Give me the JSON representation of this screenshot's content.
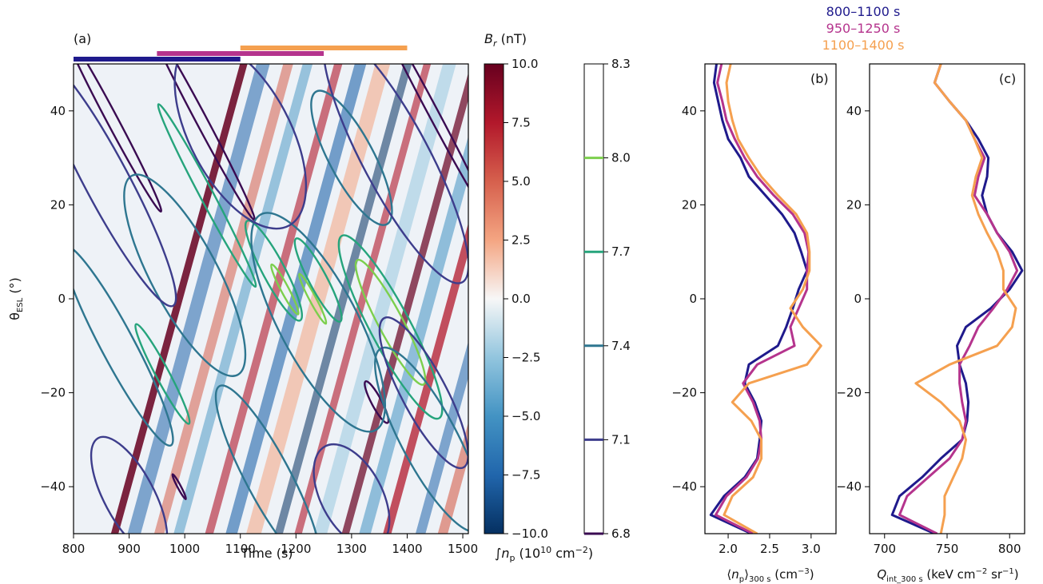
{
  "chart_data": [
    {
      "panel": "(a)",
      "type": "heatmap",
      "xlabel": "Time (s)",
      "ylabel": "θ_ESL (°)",
      "xlim": [
        800,
        1510
      ],
      "ylim": [
        -50,
        50
      ],
      "x_ticks": [
        "800",
        "900",
        "1000",
        "1100",
        "1200",
        "1300",
        "1400",
        "1500"
      ],
      "y_ticks": [
        "−40",
        "−20",
        "0",
        "20",
        "40"
      ],
      "x_tick_values": [
        800,
        900,
        1000,
        1100,
        1200,
        1300,
        1400,
        1500
      ],
      "y_tick_values": [
        -40,
        -20,
        0,
        20,
        40
      ],
      "time_windows": [
        {
          "label": "800–1100 s",
          "start": 800,
          "end": 1100,
          "color": "#1f1a8c"
        },
        {
          "label": "950–1250 s",
          "start": 950,
          "end": 1250,
          "color": "#b5348d"
        },
        {
          "label": "1100–1400 s",
          "start": 1100,
          "end": 1400,
          "color": "#f5a04f"
        }
      ],
      "colorbar_fill": {
        "label": "B_r (nT)",
        "range": [
          -10,
          10
        ],
        "ticks": [
          "10.0",
          "7.5",
          "5.0",
          "2.5",
          "0.0",
          "−2.5",
          "−5.0",
          "−7.5",
          "−10.0"
        ],
        "tick_values": [
          10,
          7.5,
          5,
          2.5,
          0,
          -2.5,
          -5,
          -7.5,
          -10
        ]
      },
      "colorbar_contours": {
        "label": "∫n_p (10^10 cm^−2)",
        "range": [
          6.8,
          8.3
        ],
        "ticks": [
          "8.3",
          "8.0",
          "7.7",
          "7.4",
          "7.1",
          "6.8"
        ],
        "levels": [
          {
            "value": 8.0,
            "color": "#7ccf4d"
          },
          {
            "value": 7.7,
            "color": "#26a47c"
          },
          {
            "value": 7.4,
            "color": "#2e7690"
          },
          {
            "value": 7.1,
            "color": "#3d3d8c"
          },
          {
            "value": 6.8,
            "color": "#3a0b52"
          }
        ]
      }
    },
    {
      "panel": "(b)",
      "type": "line",
      "xlabel": "⟨n_p⟩_300 s (cm^−3)",
      "xlim": [
        1.72,
        3.3
      ],
      "ylim": [
        -50,
        50
      ],
      "x_ticks": [
        "2.0",
        "2.5",
        "3.0"
      ],
      "x_tick_values": [
        2.0,
        2.5,
        3.0
      ],
      "y_ticks": [
        "−40",
        "−20",
        "0",
        "20",
        "40"
      ],
      "y_tick_values": [
        -40,
        -20,
        0,
        20,
        40
      ],
      "y": [
        -50,
        -46,
        -42,
        -38,
        -34,
        -30,
        -26,
        -22,
        -18,
        -14,
        -10,
        -6,
        -2,
        2,
        6,
        10,
        14,
        18,
        22,
        26,
        30,
        34,
        38,
        42,
        46,
        50
      ],
      "series": [
        {
          "name": "800–1100 s",
          "color": "#1f1a8c",
          "values": [
            2.28,
            1.79,
            1.95,
            2.2,
            2.35,
            2.38,
            2.4,
            2.32,
            2.2,
            2.25,
            2.6,
            2.7,
            2.78,
            2.85,
            2.95,
            2.88,
            2.8,
            2.65,
            2.45,
            2.25,
            2.15,
            2.0,
            1.93,
            1.88,
            1.83,
            1.86
          ]
        },
        {
          "name": "950–1250 s",
          "color": "#b5348d",
          "values": [
            2.3,
            1.85,
            1.98,
            2.22,
            2.36,
            2.4,
            2.38,
            2.3,
            2.18,
            2.35,
            2.8,
            2.75,
            2.85,
            2.95,
            2.95,
            2.97,
            2.92,
            2.78,
            2.55,
            2.35,
            2.2,
            2.08,
            1.98,
            1.93,
            1.87,
            1.92
          ]
        },
        {
          "name": "1100–1400 s",
          "color": "#f5a04f",
          "values": [
            2.35,
            1.95,
            2.05,
            2.3,
            2.4,
            2.4,
            2.28,
            2.05,
            2.25,
            2.95,
            3.12,
            2.9,
            2.75,
            2.9,
            2.98,
            2.98,
            2.95,
            2.82,
            2.6,
            2.4,
            2.25,
            2.12,
            2.05,
            2.0,
            1.98,
            2.03
          ]
        }
      ]
    },
    {
      "panel": "(c)",
      "type": "line",
      "xlabel": "Q_int_300 s (keV cm^−2 sr^−1)",
      "xlim": [
        688,
        812
      ],
      "ylim": [
        -50,
        50
      ],
      "x_ticks": [
        "700",
        "750",
        "800"
      ],
      "x_tick_values": [
        700,
        750,
        800
      ],
      "y_ticks": [
        "−40",
        "−20",
        "0",
        "20",
        "40"
      ],
      "y_tick_values": [
        -40,
        -20,
        0,
        20,
        40
      ],
      "y": [
        -50,
        -46,
        -42,
        -38,
        -34,
        -30,
        -26,
        -22,
        -18,
        -14,
        -10,
        -6,
        -2,
        2,
        6,
        10,
        14,
        18,
        22,
        26,
        30,
        34,
        38,
        42,
        46,
        50
      ],
      "series": [
        {
          "name": "800–1100 s",
          "color": "#1f1a8c",
          "values": [
            740,
            706,
            712,
            730,
            745,
            762,
            766,
            767,
            765,
            760,
            758,
            765,
            785,
            800,
            810,
            802,
            790,
            782,
            778,
            782,
            783,
            775,
            765,
            752,
            740,
            745
          ]
        },
        {
          "name": "950–1250 s",
          "color": "#b5348d",
          "values": [
            742,
            712,
            718,
            735,
            752,
            762,
            765,
            762,
            760,
            760,
            768,
            775,
            787,
            798,
            806,
            800,
            790,
            782,
            772,
            775,
            780,
            772,
            765,
            752,
            740,
            745
          ]
        },
        {
          "name": "1100–1400 s",
          "color": "#f5a04f",
          "values": [
            745,
            748,
            748,
            755,
            762,
            765,
            760,
            745,
            725,
            752,
            790,
            802,
            805,
            795,
            795,
            790,
            782,
            775,
            770,
            773,
            778,
            772,
            765,
            752,
            740,
            745
          ]
        }
      ]
    }
  ]
}
